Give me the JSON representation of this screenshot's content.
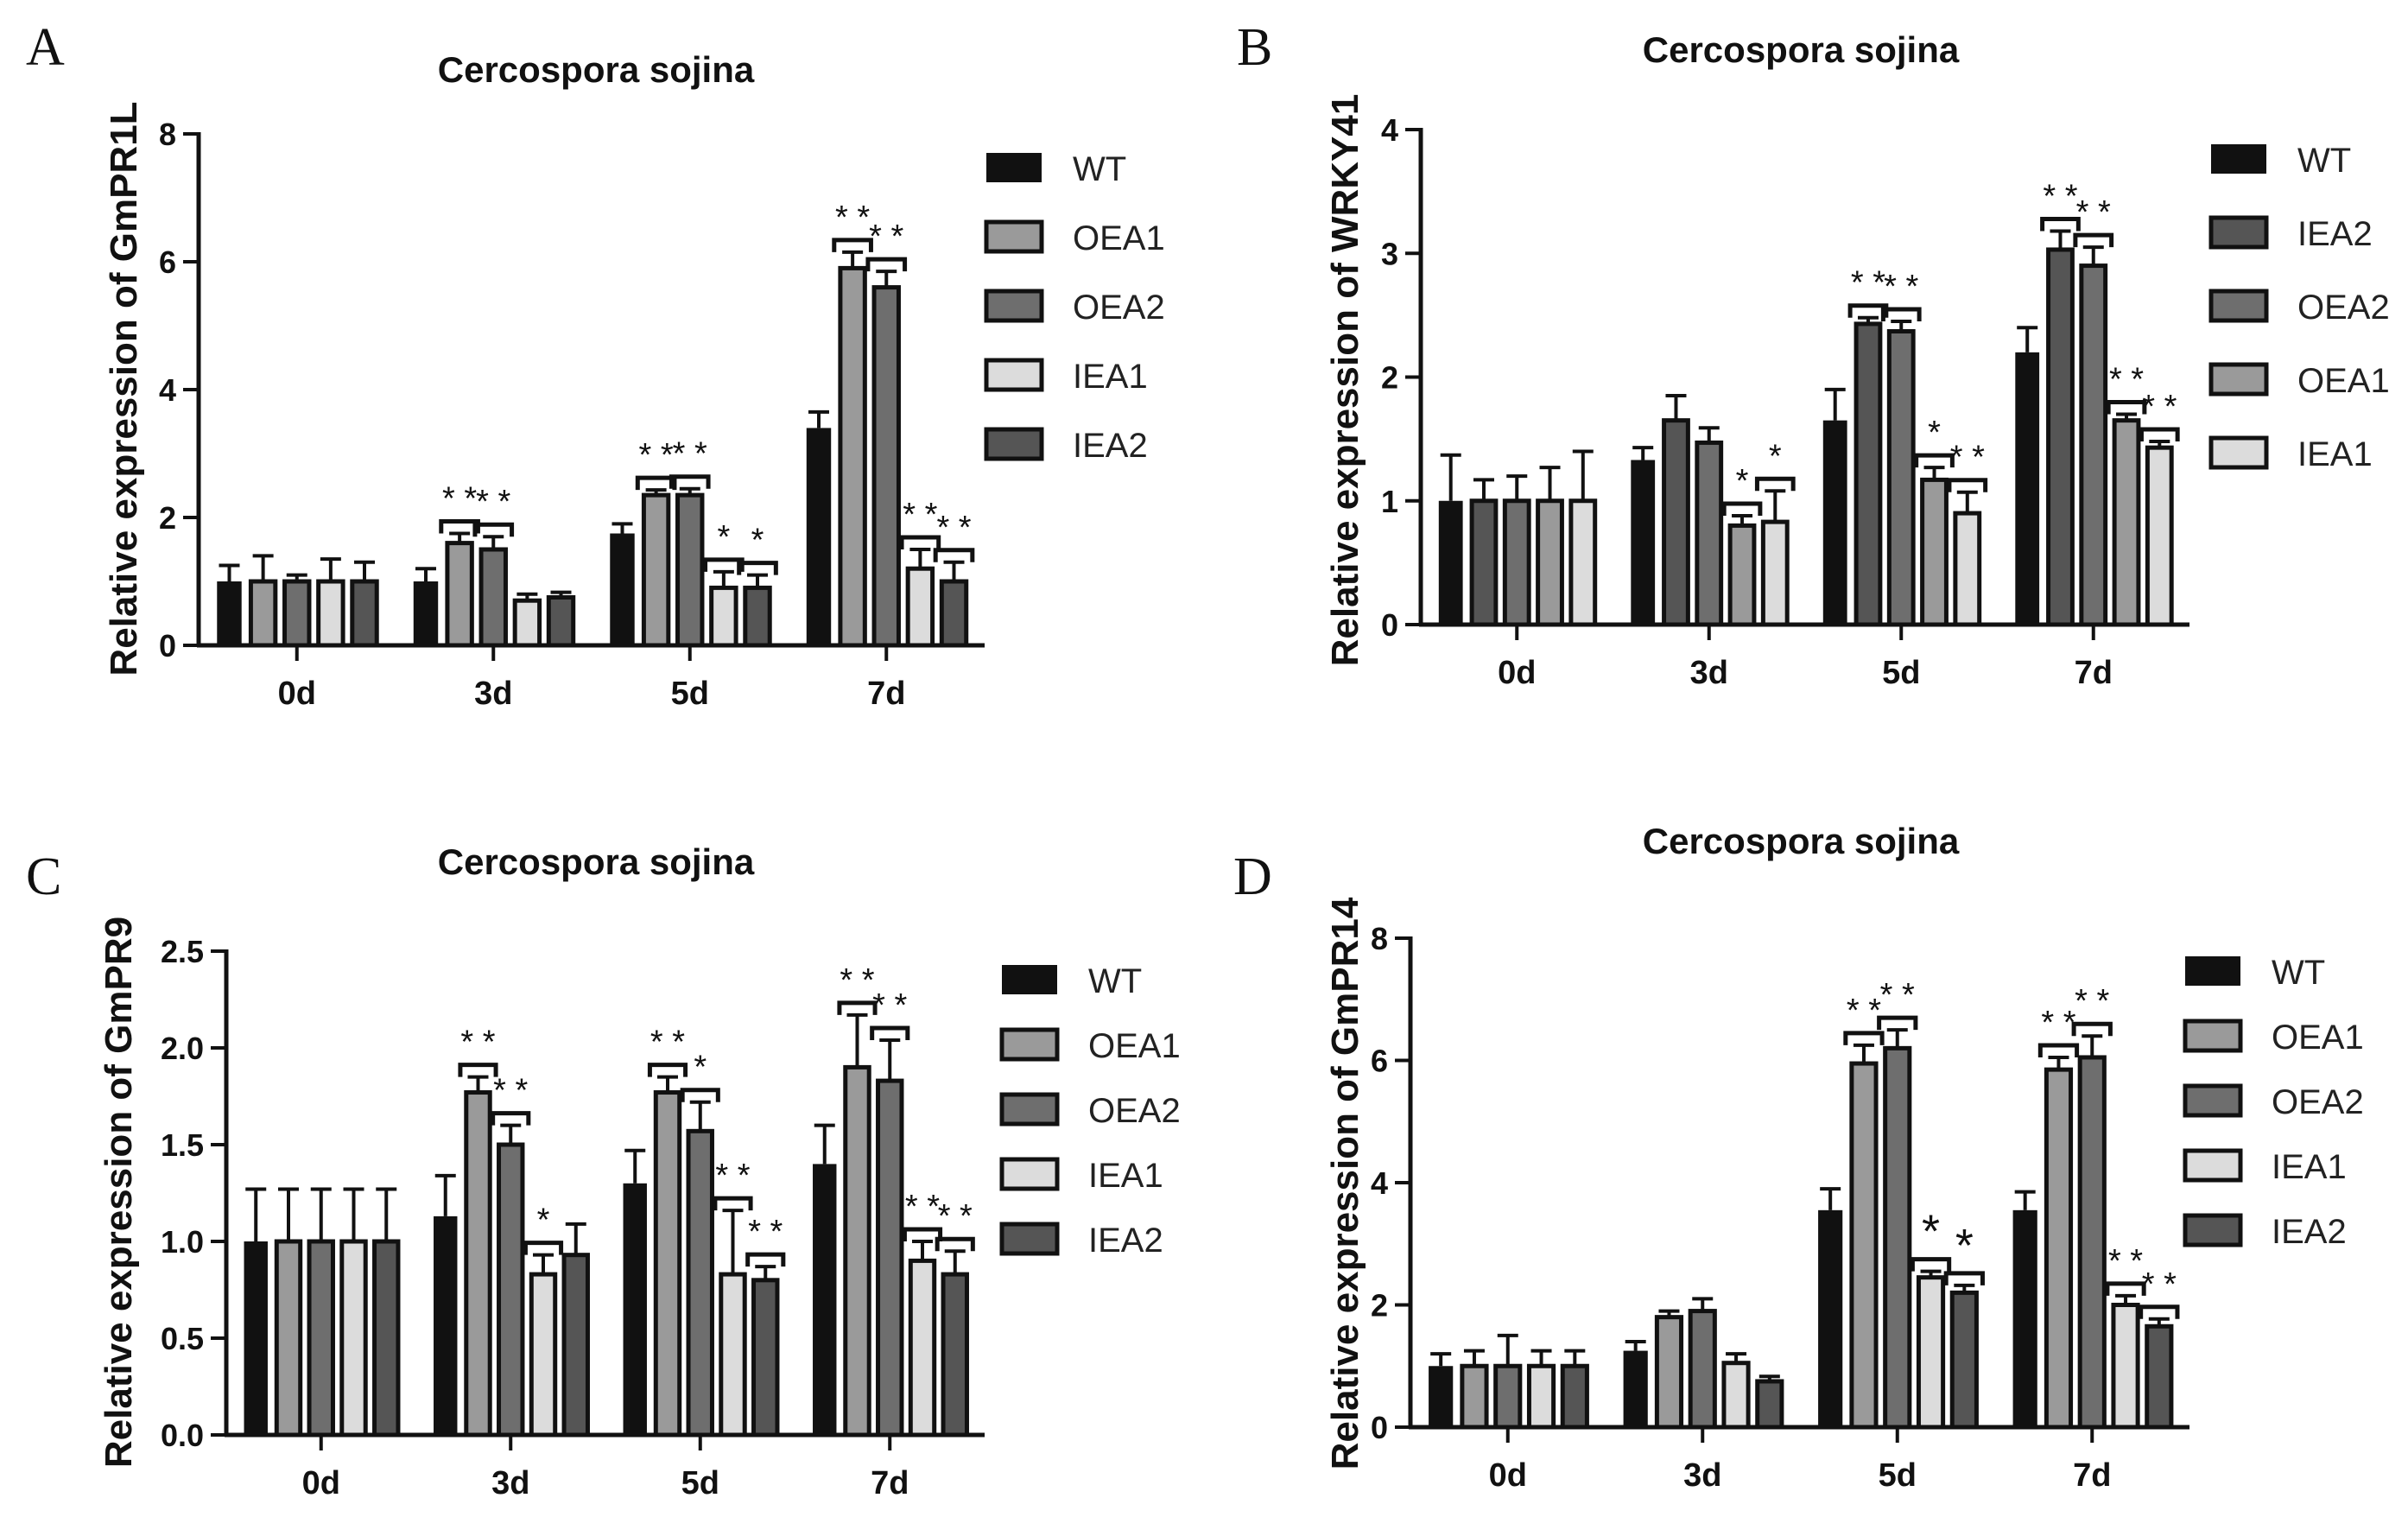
{
  "chart_data": [
    {
      "panel": "A",
      "type": "bar",
      "title": "Cercospora sojina",
      "xlabel": "",
      "ylabel": "Relative expression of GmPR1L",
      "ylim": [
        0,
        8
      ],
      "yticks": [
        "0",
        "2",
        "4",
        "6",
        "8"
      ],
      "categories": [
        "0d",
        "3d",
        "5d",
        "7d"
      ],
      "series": [
        {
          "name": "WT",
          "color": "#111111",
          "values": [
            1.0,
            1.0,
            1.75,
            3.4
          ],
          "errors": [
            0.25,
            0.2,
            0.15,
            0.25
          ]
        },
        {
          "name": "OEA1",
          "color": "#9a9a9a",
          "values": [
            1.0,
            1.6,
            2.35,
            5.9
          ],
          "errors": [
            0.4,
            0.15,
            0.08,
            0.25
          ]
        },
        {
          "name": "OEA2",
          "color": "#6e6e6e",
          "values": [
            1.0,
            1.5,
            2.35,
            5.6
          ],
          "errors": [
            0.1,
            0.2,
            0.1,
            0.25
          ]
        },
        {
          "name": "IEA1",
          "color": "#dcdcdc",
          "values": [
            1.0,
            0.7,
            0.9,
            1.2
          ],
          "errors": [
            0.35,
            0.1,
            0.25,
            0.3
          ]
        },
        {
          "name": "IEA2",
          "color": "#555555",
          "values": [
            1.0,
            0.75,
            0.9,
            1.0
          ],
          "errors": [
            0.3,
            0.08,
            0.2,
            0.3
          ]
        }
      ],
      "stars": [
        [
          "",
          "",
          "",
          "",
          ""
        ],
        [
          "",
          "* *",
          "* *",
          "",
          ""
        ],
        [
          "",
          "* *",
          "* *",
          "*",
          "*"
        ],
        [
          "",
          "* *",
          "* *",
          "* *",
          "* *"
        ]
      ]
    },
    {
      "panel": "B",
      "type": "bar",
      "title": "Cercospora sojina",
      "xlabel": "",
      "ylabel": "Relative expression of WRKY41",
      "ylim": [
        0,
        4
      ],
      "yticks": [
        "0",
        "1",
        "2",
        "3",
        "4"
      ],
      "categories": [
        "0d",
        "3d",
        "5d",
        "7d"
      ],
      "series": [
        {
          "name": "WT",
          "color": "#111111",
          "values": [
            1.0,
            1.33,
            1.65,
            2.2
          ],
          "errors": [
            0.37,
            0.1,
            0.25,
            0.2
          ]
        },
        {
          "name": "IEA2",
          "color": "#555555",
          "values": [
            1.0,
            1.65,
            2.43,
            3.03
          ],
          "errors": [
            0.17,
            0.2,
            0.05,
            0.15
          ]
        },
        {
          "name": "OEA2",
          "color": "#6e6e6e",
          "values": [
            1.0,
            1.47,
            2.37,
            2.9
          ],
          "errors": [
            0.2,
            0.12,
            0.08,
            0.15
          ]
        },
        {
          "name": "OEA1",
          "color": "#9a9a9a",
          "values": [
            1.0,
            0.8,
            1.17,
            1.65
          ],
          "errors": [
            0.27,
            0.08,
            0.1,
            0.05
          ]
        },
        {
          "name": "IEA1",
          "color": "#dcdcdc",
          "values": [
            1.0,
            0.83,
            0.9,
            1.43
          ],
          "errors": [
            0.4,
            0.25,
            0.17,
            0.05
          ]
        }
      ],
      "stars": [
        [
          "",
          "",
          "",
          "",
          ""
        ],
        [
          "",
          "",
          "",
          "*",
          "*"
        ],
        [
          "",
          "* *",
          "* *",
          "*",
          "* *"
        ],
        [
          "",
          "* *",
          "* *",
          "* *",
          "* *"
        ]
      ]
    },
    {
      "panel": "C",
      "type": "bar",
      "title": "Cercospora sojina",
      "xlabel": "",
      "ylabel": "Relative expression of GmPR9",
      "ylim": [
        0,
        2.5
      ],
      "yticks": [
        "0.0",
        "0.5",
        "1.0",
        "1.5",
        "2.0",
        "2.5"
      ],
      "categories": [
        "0d",
        "3d",
        "5d",
        "7d"
      ],
      "series": [
        {
          "name": "WT",
          "color": "#111111",
          "values": [
            1.0,
            1.13,
            1.3,
            1.4
          ],
          "errors": [
            0.27,
            0.21,
            0.17,
            0.2
          ]
        },
        {
          "name": "OEA1",
          "color": "#9a9a9a",
          "values": [
            1.0,
            1.77,
            1.77,
            1.9
          ],
          "errors": [
            0.27,
            0.08,
            0.08,
            0.27
          ]
        },
        {
          "name": "OEA2",
          "color": "#6e6e6e",
          "values": [
            1.0,
            1.5,
            1.57,
            1.83
          ],
          "errors": [
            0.27,
            0.1,
            0.15,
            0.21
          ]
        },
        {
          "name": "IEA1",
          "color": "#dcdcdc",
          "values": [
            1.0,
            0.83,
            0.83,
            0.9
          ],
          "errors": [
            0.27,
            0.1,
            0.33,
            0.1
          ]
        },
        {
          "name": "IEA2",
          "color": "#555555",
          "values": [
            1.0,
            0.93,
            0.8,
            0.83
          ],
          "errors": [
            0.27,
            0.16,
            0.07,
            0.12
          ]
        }
      ],
      "stars": [
        [
          "",
          "",
          "",
          "",
          ""
        ],
        [
          "",
          "* *",
          "* *",
          "*",
          ""
        ],
        [
          "",
          "* *",
          "*",
          "* *",
          "* *"
        ],
        [
          "",
          "* *",
          "* *",
          "* *",
          "* *"
        ]
      ]
    },
    {
      "panel": "D",
      "type": "bar",
      "title": "Cercospora sojina",
      "xlabel": "",
      "ylabel": "Relative expression of GmPR14",
      "ylim": [
        0,
        8
      ],
      "yticks": [
        "0",
        "2",
        "4",
        "6",
        "8"
      ],
      "categories": [
        "0d",
        "3d",
        "5d",
        "7d"
      ],
      "series": [
        {
          "name": "WT",
          "color": "#111111",
          "values": [
            1.0,
            1.25,
            3.55,
            3.55
          ],
          "errors": [
            0.2,
            0.15,
            0.35,
            0.3
          ]
        },
        {
          "name": "OEA1",
          "color": "#9a9a9a",
          "values": [
            1.0,
            1.8,
            5.95,
            5.85
          ],
          "errors": [
            0.25,
            0.1,
            0.3,
            0.2
          ]
        },
        {
          "name": "OEA2",
          "color": "#6e6e6e",
          "values": [
            1.0,
            1.9,
            6.2,
            6.05
          ],
          "errors": [
            0.5,
            0.2,
            0.3,
            0.35
          ]
        },
        {
          "name": "IEA1",
          "color": "#dcdcdc",
          "values": [
            1.0,
            1.05,
            2.45,
            2.0
          ],
          "errors": [
            0.25,
            0.15,
            0.1,
            0.15
          ]
        },
        {
          "name": "IEA2",
          "color": "#555555",
          "values": [
            1.0,
            0.75,
            2.2,
            1.65
          ],
          "errors": [
            0.25,
            0.08,
            0.12,
            0.12
          ]
        }
      ],
      "stars": [
        [
          "",
          "",
          "",
          "",
          ""
        ],
        [
          "",
          "",
          "",
          "",
          ""
        ],
        [
          "",
          "* *",
          "* *",
          "*",
          "*"
        ],
        [
          "",
          "* *",
          "* *",
          "* *",
          "* *"
        ]
      ]
    }
  ]
}
